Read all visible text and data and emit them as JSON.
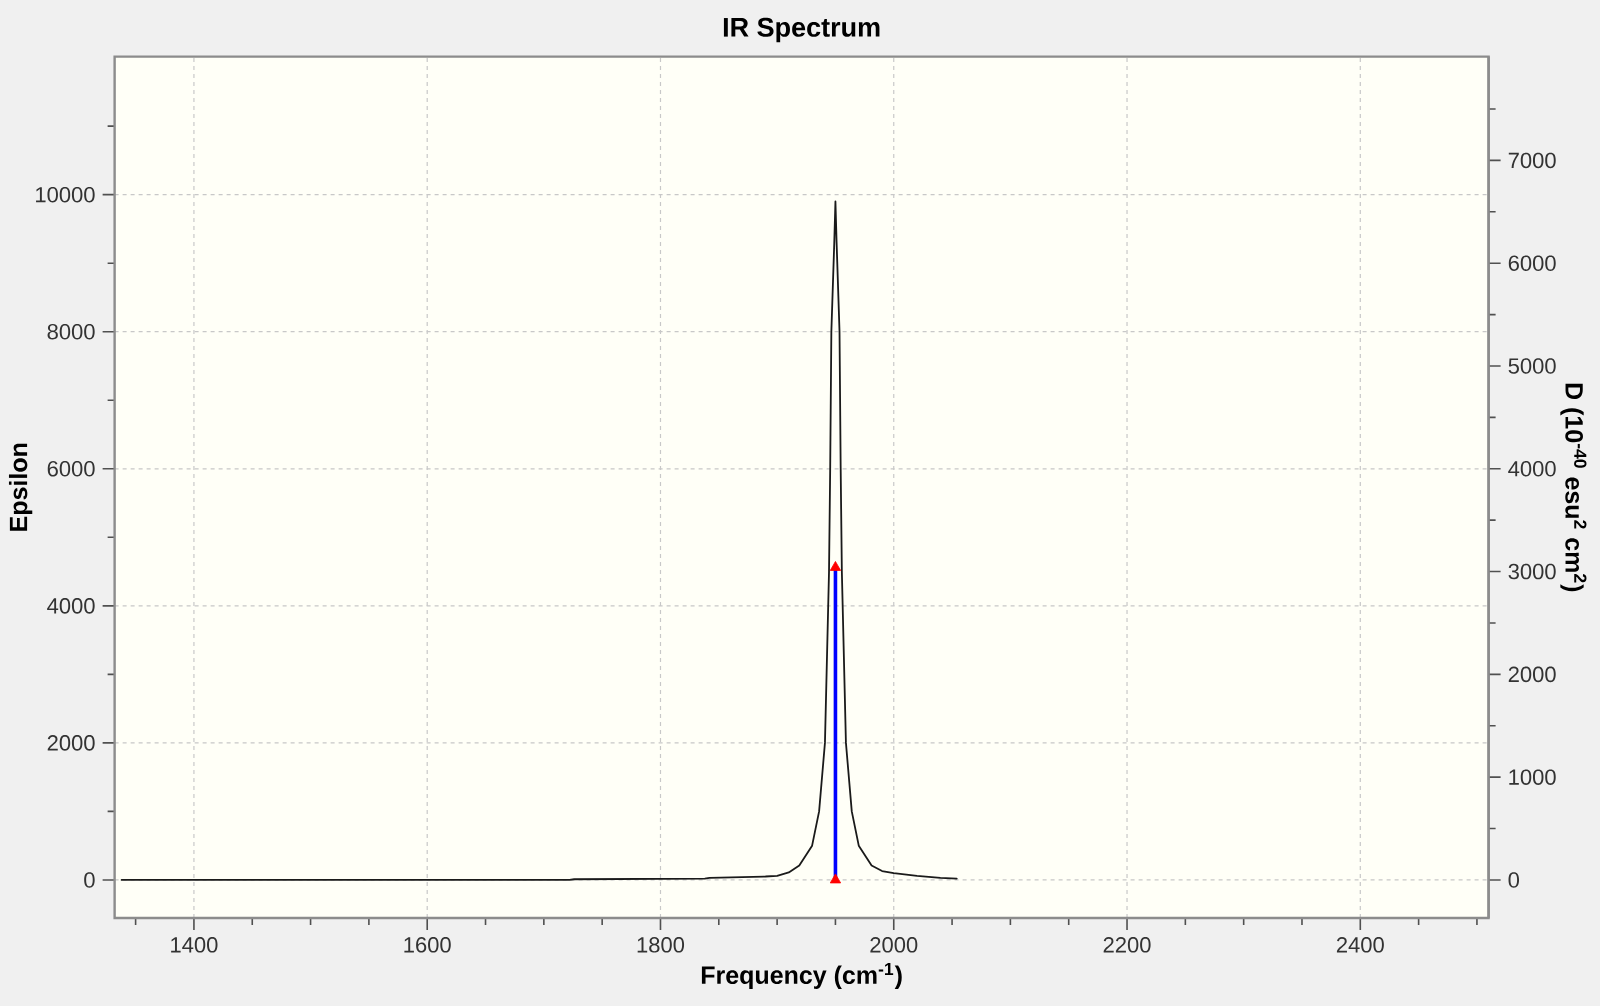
{
  "chart_data": {
    "type": "line",
    "title": "IR Spectrum",
    "xlabel": "Frequency (cm$^{-1}$)",
    "ylabel": "Epsilon",
    "y2label": "D (10$^{-40}$ esu$^{2}$ cm$^{2}$)",
    "xlim": [
      1332,
      2510
    ],
    "xticks": [
      {
        "value": 1350,
        "label": null
      },
      1400,
      {
        "value": 1450,
        "label": null
      },
      {
        "value": 1500,
        "label": null
      },
      {
        "value": 1550,
        "label": null
      },
      1600,
      {
        "value": 1650,
        "label": null
      },
      {
        "value": 1700,
        "label": null
      },
      {
        "value": 1750,
        "label": null
      },
      1800,
      {
        "value": 1850,
        "label": null
      },
      {
        "value": 1900,
        "label": null
      },
      {
        "value": 1950,
        "label": null
      },
      2000,
      {
        "value": 2050,
        "label": null
      },
      {
        "value": 2100,
        "label": null
      },
      {
        "value": 2150,
        "label": null
      },
      2200,
      {
        "value": 2250,
        "label": null
      },
      {
        "value": 2300,
        "label": null
      },
      {
        "value": 2350,
        "label": null
      },
      2400,
      {
        "value": 2450,
        "label": null
      },
      {
        "value": 2500,
        "label": null
      }
    ],
    "ylim": [
      -555,
      12015
    ],
    "yticks": [
      0,
      {
        "value": 1000,
        "label": null
      },
      2000,
      {
        "value": 3000,
        "label": null
      },
      4000,
      {
        "value": 5000,
        "label": null
      },
      6000,
      {
        "value": 7000,
        "label": null
      },
      8000,
      {
        "value": 9000,
        "label": null
      },
      10000,
      {
        "value": 11000,
        "label": null
      }
    ],
    "y2lim": [
      -370,
      8010
    ],
    "y2ticks": [
      0,
      {
        "value": 500,
        "label": null
      },
      1000,
      {
        "value": 1500,
        "label": null
      },
      2000,
      {
        "value": 2500,
        "label": null
      },
      3000,
      {
        "value": 3500,
        "label": null
      },
      4000,
      {
        "value": 4500,
        "label": null
      },
      5000,
      {
        "value": 5500,
        "label": null
      },
      6000,
      {
        "value": 6500,
        "label": null
      },
      7000,
      {
        "value": 7500,
        "label": null
      }
    ],
    "grid": true,
    "series": [
      {
        "color": "#1a1a1a",
        "x": [
          1338,
          1722,
          1726,
          1838,
          1842,
          1890,
          1900,
          1910,
          1919,
          1930,
          1936,
          1941,
          1944.5,
          1945.5,
          1946.5,
          1949,
          1950,
          1951,
          1953.5,
          1954.5,
          1955.5,
          1959,
          1964,
          1970,
          1981,
          1990,
          2000,
          2020,
          2040,
          2054
        ],
        "values": [
          0,
          0,
          10,
          20,
          30,
          50,
          60,
          110,
          210,
          500,
          1000,
          2000,
          4500,
          6000,
          8000,
          9300,
          9900,
          9300,
          8000,
          6000,
          4500,
          2000,
          1000,
          500,
          210,
          130,
          100,
          60,
          30,
          20
        ]
      },
      {
        "type": "bar",
        "axis": "y2",
        "color": "#0000ff",
        "x": [
          1950
        ],
        "values": [
          3040
        ]
      },
      {
        "type": "scatter",
        "axis": "y2",
        "color": "#ff0000",
        "marker": "triangle",
        "x": [
          1950,
          1950
        ],
        "values": [
          0,
          3040
        ]
      }
    ]
  }
}
